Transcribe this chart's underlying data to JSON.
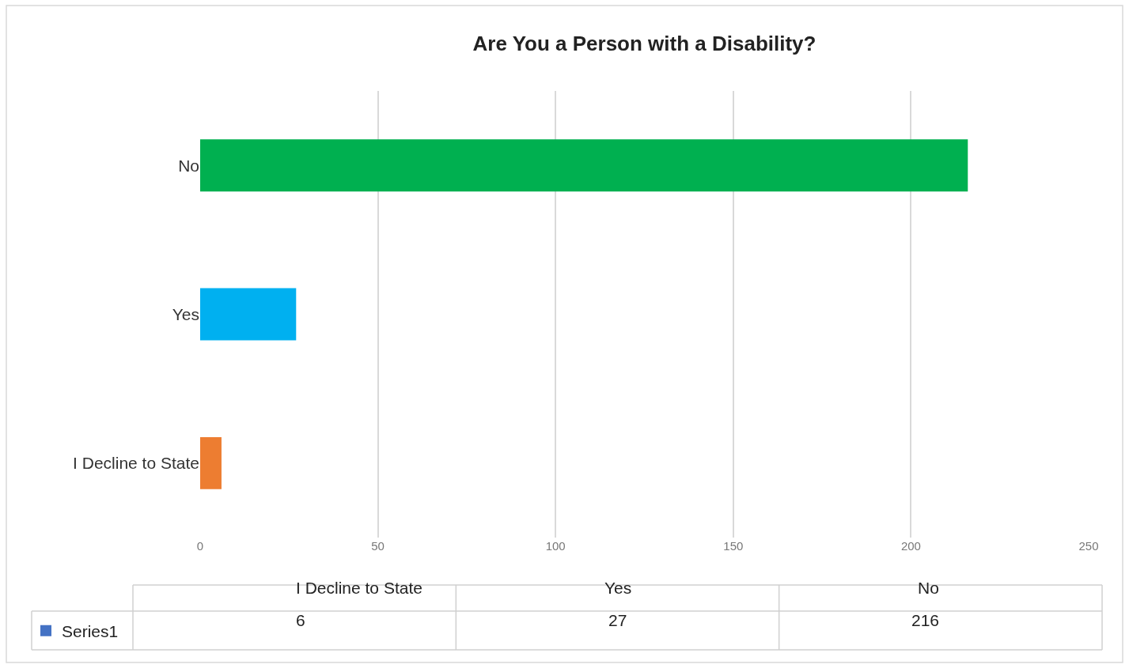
{
  "chart_data": [
    {
      "type": "bar",
      "title": "Are You a Person with a Disability?",
      "orientation": "horizontal",
      "categories": [
        "No",
        "Yes",
        "I Decline to State"
      ],
      "series": [
        {
          "colors": [
            "#00b050",
            "#00b0f0",
            "#ed7d31"
          ],
          "values": [
            216,
            27,
            6
          ]
        }
      ],
      "xlim": [
        0,
        250
      ],
      "xticks": [
        0,
        50,
        100,
        150,
        200,
        250
      ],
      "grid": "x"
    },
    {
      "type": "other",
      "categories": [
        "I Decline to State",
        "Yes",
        "No"
      ],
      "series": [
        {
          "name": "Series1",
          "color": "#4472c4",
          "values": [
            6,
            27,
            216
          ]
        }
      ],
      "data_labels": true,
      "legend": "left"
    }
  ]
}
